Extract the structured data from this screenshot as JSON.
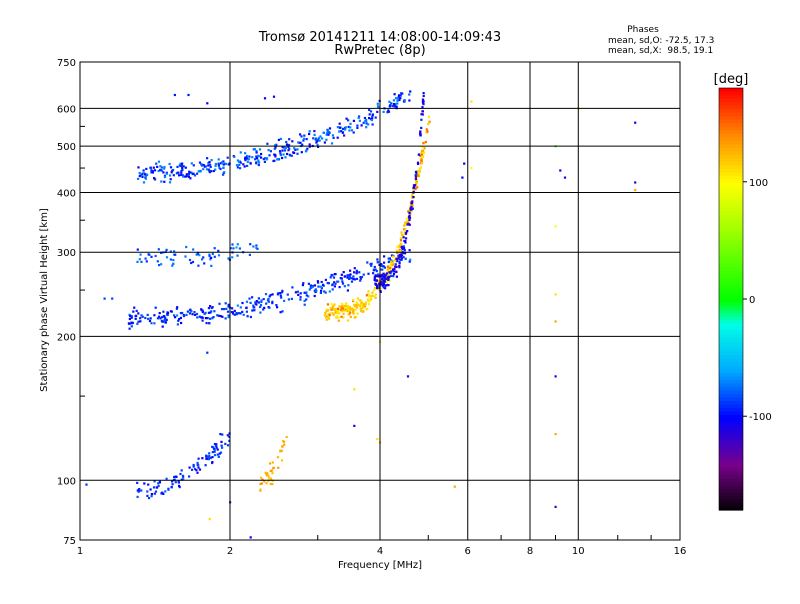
{
  "header": {
    "title": "Tromsø 20141211 14:08:00-14:09:43",
    "subtitle": "RwPretec (8p)"
  },
  "phases_box": {
    "heading": "Phases",
    "line_o": "mean, sd,O: -72.5, 17.3",
    "line_x": "mean, sd,X:  98.5, 19.1"
  },
  "colorbar": {
    "label": "[deg]",
    "range": [
      -180,
      180
    ],
    "tick_labels": [
      "100",
      "0",
      "-100"
    ],
    "tick_values": [
      100,
      0,
      -100
    ]
  },
  "chart_data": {
    "type": "scatter",
    "xlabel": "Frequency [MHz]",
    "ylabel": "Stationary phase Virtual Height [km]",
    "x_scale": "log",
    "y_scale": "log",
    "xlim": [
      1,
      16
    ],
    "ylim": [
      75,
      750
    ],
    "x_ticks": [
      1,
      2,
      4,
      6,
      8,
      10,
      16
    ],
    "x_tick_labels": [
      "1",
      "2",
      "4",
      "6",
      "8",
      "10",
      "16"
    ],
    "y_ticks": [
      75,
      100,
      200,
      300,
      400,
      500,
      600,
      750
    ],
    "y_tick_labels": [
      "75",
      "100",
      "200",
      "300",
      "400",
      "500",
      "600",
      "750"
    ],
    "grid": true,
    "color_encoding": "phase [deg]",
    "clusters": [
      {
        "name": "o-trace-lower",
        "f_range": [
          1.25,
          4.6
        ],
        "h_start": 218,
        "h_end": 300,
        "phase": -90,
        "count": 360
      },
      {
        "name": "o-trace-upper",
        "f_range": [
          1.3,
          4.6
        ],
        "h_start": 440,
        "h_end": 640,
        "phase": -95,
        "count": 380
      },
      {
        "name": "x-trace-yellow",
        "f_range": [
          3.1,
          5.05
        ],
        "h_start": 225,
        "h_end": 600,
        "phase": 115,
        "count": 320
      },
      {
        "name": "o-cusp-blue",
        "f_range": [
          3.9,
          4.9
        ],
        "h_start": 260,
        "h_end": 650,
        "phase": -105,
        "count": 160
      },
      {
        "name": "sporadic-e",
        "f_range": [
          1.3,
          2.0
        ],
        "h_start": 95,
        "h_end": 125,
        "phase": -90,
        "count": 110
      },
      {
        "name": "e-region-orange",
        "f_range": [
          2.3,
          2.6
        ],
        "h_start": 100,
        "h_end": 122,
        "phase": 130,
        "count": 40
      },
      {
        "name": "f-band-300",
        "f_range": [
          1.3,
          2.3
        ],
        "h_start": 290,
        "h_end": 310,
        "phase": -80,
        "count": 70
      }
    ],
    "points": [
      {
        "f": 1.55,
        "h": 640,
        "phase": -95
      },
      {
        "f": 1.65,
        "h": 640,
        "phase": -95
      },
      {
        "f": 1.8,
        "h": 615,
        "phase": -100
      },
      {
        "f": 2.35,
        "h": 630,
        "phase": -100
      },
      {
        "f": 2.45,
        "h": 635,
        "phase": -100
      },
      {
        "f": 6.1,
        "h": 620,
        "phase": 110
      },
      {
        "f": 5.9,
        "h": 460,
        "phase": -100
      },
      {
        "f": 5.85,
        "h": 430,
        "phase": -100
      },
      {
        "f": 6.1,
        "h": 450,
        "phase": 100
      },
      {
        "f": 9.2,
        "h": 445,
        "phase": -100
      },
      {
        "f": 9.4,
        "h": 430,
        "phase": -110
      },
      {
        "f": 10.0,
        "h": 600,
        "phase": 120
      },
      {
        "f": 13.0,
        "h": 560,
        "phase": -110
      },
      {
        "f": 13.0,
        "h": 420,
        "phase": -110
      },
      {
        "f": 13.0,
        "h": 405,
        "phase": 130
      },
      {
        "f": 9.0,
        "h": 500,
        "phase": 30
      },
      {
        "f": 9.0,
        "h": 340,
        "phase": 100
      },
      {
        "f": 9.0,
        "h": 245,
        "phase": 110
      },
      {
        "f": 9.0,
        "h": 215,
        "phase": 130
      },
      {
        "f": 9.0,
        "h": 165,
        "phase": -110
      },
      {
        "f": 9.0,
        "h": 125,
        "phase": 130
      },
      {
        "f": 9.0,
        "h": 88,
        "phase": -120
      },
      {
        "f": 4.55,
        "h": 165,
        "phase": -110
      },
      {
        "f": 4.0,
        "h": 195,
        "phase": 110
      },
      {
        "f": 3.55,
        "h": 155,
        "phase": 110
      },
      {
        "f": 3.55,
        "h": 130,
        "phase": -110
      },
      {
        "f": 3.95,
        "h": 122,
        "phase": 110
      },
      {
        "f": 4.0,
        "h": 120,
        "phase": 120
      },
      {
        "f": 5.65,
        "h": 97,
        "phase": 130
      },
      {
        "f": 1.82,
        "h": 83,
        "phase": 110
      },
      {
        "f": 2.2,
        "h": 76,
        "phase": -100
      },
      {
        "f": 2.0,
        "h": 90,
        "phase": -90
      },
      {
        "f": 1.03,
        "h": 98,
        "phase": -90
      },
      {
        "f": 1.12,
        "h": 240,
        "phase": -85
      },
      {
        "f": 1.16,
        "h": 240,
        "phase": -85
      },
      {
        "f": 1.8,
        "h": 185,
        "phase": -90
      },
      {
        "f": 2.0,
        "h": 200,
        "phase": -90
      }
    ]
  }
}
